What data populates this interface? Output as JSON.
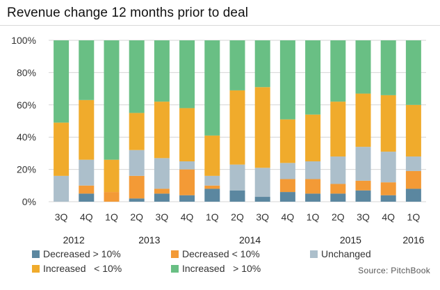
{
  "title": "Revenue change 12 months prior to deal",
  "source": "Source: PitchBook",
  "colors": {
    "decreased_gt_10": "#5b87a0",
    "decreased_lt_10": "#f39a36",
    "unchanged": "#acbfcb",
    "increased_lt_10": "#f0ab2c",
    "increased_gt_10": "#69bf84",
    "grid": "#d4d4d4"
  },
  "legend": [
    {
      "label": "Decreased > 10%",
      "color": "#5b87a0"
    },
    {
      "label": "Decreased < 10%",
      "color": "#f39a36"
    },
    {
      "label": "Unchanged",
      "color": "#acbfcb"
    },
    {
      "label": "Increased   < 10%",
      "color": "#f0ab2c"
    },
    {
      "label": "Increased   > 10%",
      "color": "#69bf84"
    }
  ],
  "chart_data": {
    "type": "bar",
    "stacked": true,
    "title": "Revenue change 12 months prior to deal",
    "ylim": [
      0,
      100
    ],
    "yticks": [
      "0%",
      "20%",
      "40%",
      "60%",
      "80%",
      "100%"
    ],
    "grid": true,
    "legend_position": "bottom",
    "categories": [
      "3Q",
      "4Q",
      "1Q",
      "2Q",
      "3Q",
      "4Q",
      "1Q",
      "2Q",
      "3Q",
      "4Q",
      "1Q",
      "2Q",
      "3Q",
      "4Q",
      "1Q"
    ],
    "years": [
      {
        "label": "2012",
        "from": 0,
        "to": 1
      },
      {
        "label": "2013",
        "from": 2,
        "to": 5
      },
      {
        "label": "2014",
        "from": 6,
        "to": 9
      },
      {
        "label": "2015",
        "from": 10,
        "to": 13
      },
      {
        "label": "2016",
        "from": 14,
        "to": 14
      }
    ],
    "series": [
      {
        "name": "Decreased > 10%",
        "color": "#5b87a0",
        "values": [
          0,
          5,
          0,
          2,
          5,
          4,
          8,
          7,
          3,
          6,
          5,
          5,
          7,
          4,
          8
        ]
      },
      {
        "name": "Decreased < 10%",
        "color": "#f39a36",
        "values": [
          0,
          5,
          6,
          14,
          3,
          16,
          2,
          0,
          0,
          8,
          9,
          6,
          6,
          8,
          11
        ]
      },
      {
        "name": "Unchanged",
        "color": "#acbfcb",
        "values": [
          16,
          16,
          0,
          16,
          19,
          5,
          6,
          16,
          18,
          10,
          11,
          17,
          21,
          19,
          9
        ]
      },
      {
        "name": "Increased   < 10%",
        "color": "#f0ab2c",
        "values": [
          33,
          37,
          20,
          23,
          35,
          33,
          25,
          46,
          50,
          27,
          29,
          34,
          33,
          35,
          32
        ]
      },
      {
        "name": "Increased   > 10%",
        "color": "#69bf84",
        "values": [
          51,
          37,
          74,
          45,
          38,
          42,
          59,
          31,
          29,
          49,
          46,
          38,
          33,
          34,
          40
        ]
      }
    ]
  }
}
